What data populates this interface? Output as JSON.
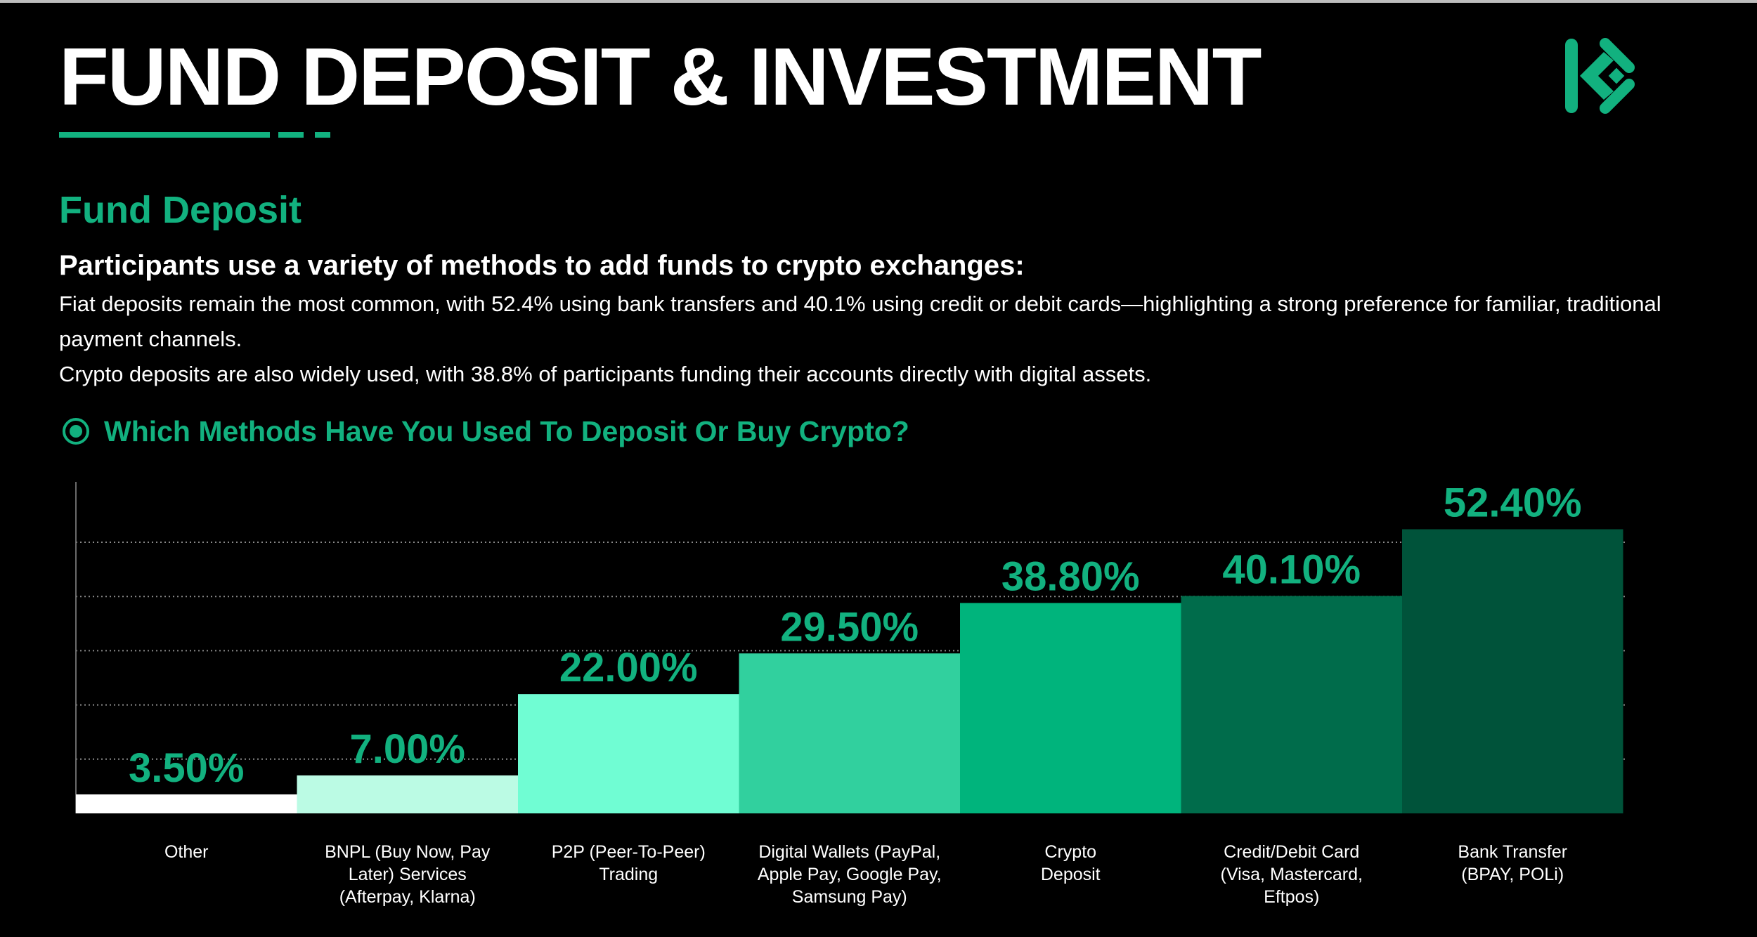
{
  "header": {
    "title": "FUND DEPOSIT & INVESTMENT",
    "logo_icon": "kucoin-logo-icon"
  },
  "section": {
    "title": "Fund Deposit",
    "lead": "Participants use a variety of methods to add funds to crypto exchanges:",
    "paragraph_1": "Fiat deposits remain the most common, with 52.4% using bank transfers and 40.1% using credit or debit cards—highlighting a strong preference for familiar, traditional payment channels.",
    "paragraph_2": "Crypto deposits are also widely used, with 38.8% of participants funding their accounts directly with digital assets."
  },
  "colors": {
    "accent": "#12b17f",
    "background": "#000000",
    "text": "#ffffff"
  },
  "chart_data": {
    "type": "bar",
    "title": "Which Methods Have You Used To Deposit Or Buy Crypto?",
    "title_icon": "radio-dot-icon",
    "categories": [
      "Other",
      "BNPL (Buy Now, Pay Later) Services (Afterpay, Klarna)",
      "P2P (Peer-To-Peer) Trading",
      "Digital Wallets (PayPal, Apple Pay, Google Pay, Samsung Pay)",
      "Crypto Deposit",
      "Credit/Debit Card (Visa, Mastercard, Eftpos)",
      "Bank Transfer (BPAY, POLi)"
    ],
    "category_lines": [
      [
        "Other"
      ],
      [
        "BNPL (Buy Now, Pay",
        "Later) Services",
        "(Afterpay, Klarna)"
      ],
      [
        "P2P (Peer-To-Peer)",
        "Trading"
      ],
      [
        "Digital Wallets (PayPal,",
        "Apple Pay, Google Pay,",
        "Samsung Pay)"
      ],
      [
        "Crypto",
        "Deposit"
      ],
      [
        "Credit/Debit Card",
        "(Visa, Mastercard,",
        "Eftpos)"
      ],
      [
        "Bank Transfer",
        "(BPAY, POLi)"
      ]
    ],
    "values": [
      3.5,
      7.0,
      22.0,
      29.5,
      38.8,
      40.1,
      52.4
    ],
    "value_labels": [
      "3.50%",
      "7.00%",
      "22.00%",
      "29.50%",
      "38.80%",
      "40.10%",
      "52.40%"
    ],
    "bar_colors": [
      "#ffffff",
      "#bbfbe4",
      "#70fdd3",
      "#31d09e",
      "#00b47c",
      "#006c4b",
      "#00533a"
    ],
    "label_color": "#12b17f",
    "ylim": [
      0,
      50
    ],
    "gridlines": [
      10,
      20,
      30,
      40,
      50
    ],
    "grid": "dotted horizontal",
    "legend": "none"
  }
}
